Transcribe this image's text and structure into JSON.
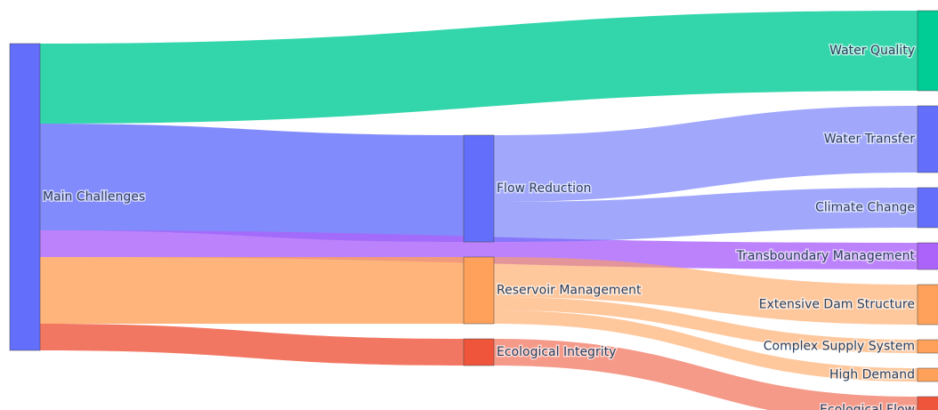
{
  "chart_data": {
    "type": "sankey",
    "nodes": [
      {
        "label": "Main Challenges",
        "color": "#636efa"
      },
      {
        "label": "Flow Reduction",
        "color": "#636efa"
      },
      {
        "label": "Reservoir Management",
        "color": "#ffa15a"
      },
      {
        "label": "Ecological Integrity",
        "color": "#ef553b"
      },
      {
        "label": "Water Quality",
        "color": "#00cc96"
      },
      {
        "label": "Water Transfer",
        "color": "#636efa"
      },
      {
        "label": "Climate Change",
        "color": "#636efa"
      },
      {
        "label": "Transboundary Management",
        "color": "#ab63fa"
      },
      {
        "label": "Extensive Dam Structure",
        "color": "#ffa15a"
      },
      {
        "label": "Complex Supply System",
        "color": "#ffa15a"
      },
      {
        "label": "High Demand",
        "color": "#ffa15a"
      },
      {
        "label": "Ecological Flow",
        "color": "#ef553b"
      }
    ],
    "links": [
      {
        "source": 0,
        "target": 4,
        "value": 30,
        "color": "rgba(0,204,150,0.8)"
      },
      {
        "source": 0,
        "target": 1,
        "value": 40,
        "color": "rgba(99,110,250,0.8)"
      },
      {
        "source": 0,
        "target": 7,
        "value": 10,
        "color": "rgba(171,99,250,0.8)"
      },
      {
        "source": 0,
        "target": 2,
        "value": 25,
        "color": "rgba(255,161,90,0.8)"
      },
      {
        "source": 0,
        "target": 3,
        "value": 10,
        "color": "rgba(239,85,59,0.8)"
      },
      {
        "source": 1,
        "target": 5,
        "value": 25,
        "color": "rgba(99,110,250,0.6)"
      },
      {
        "source": 1,
        "target": 6,
        "value": 15,
        "color": "rgba(99,110,250,0.6)"
      },
      {
        "source": 2,
        "target": 8,
        "value": 15,
        "color": "rgba(255,161,90,0.6)"
      },
      {
        "source": 2,
        "target": 9,
        "value": 5,
        "color": "rgba(255,161,90,0.6)"
      },
      {
        "source": 2,
        "target": 10,
        "value": 5,
        "color": "rgba(255,161,90,0.6)"
      },
      {
        "source": 3,
        "target": 11,
        "value": 10,
        "color": "rgba(239,85,59,0.6)"
      }
    ]
  }
}
